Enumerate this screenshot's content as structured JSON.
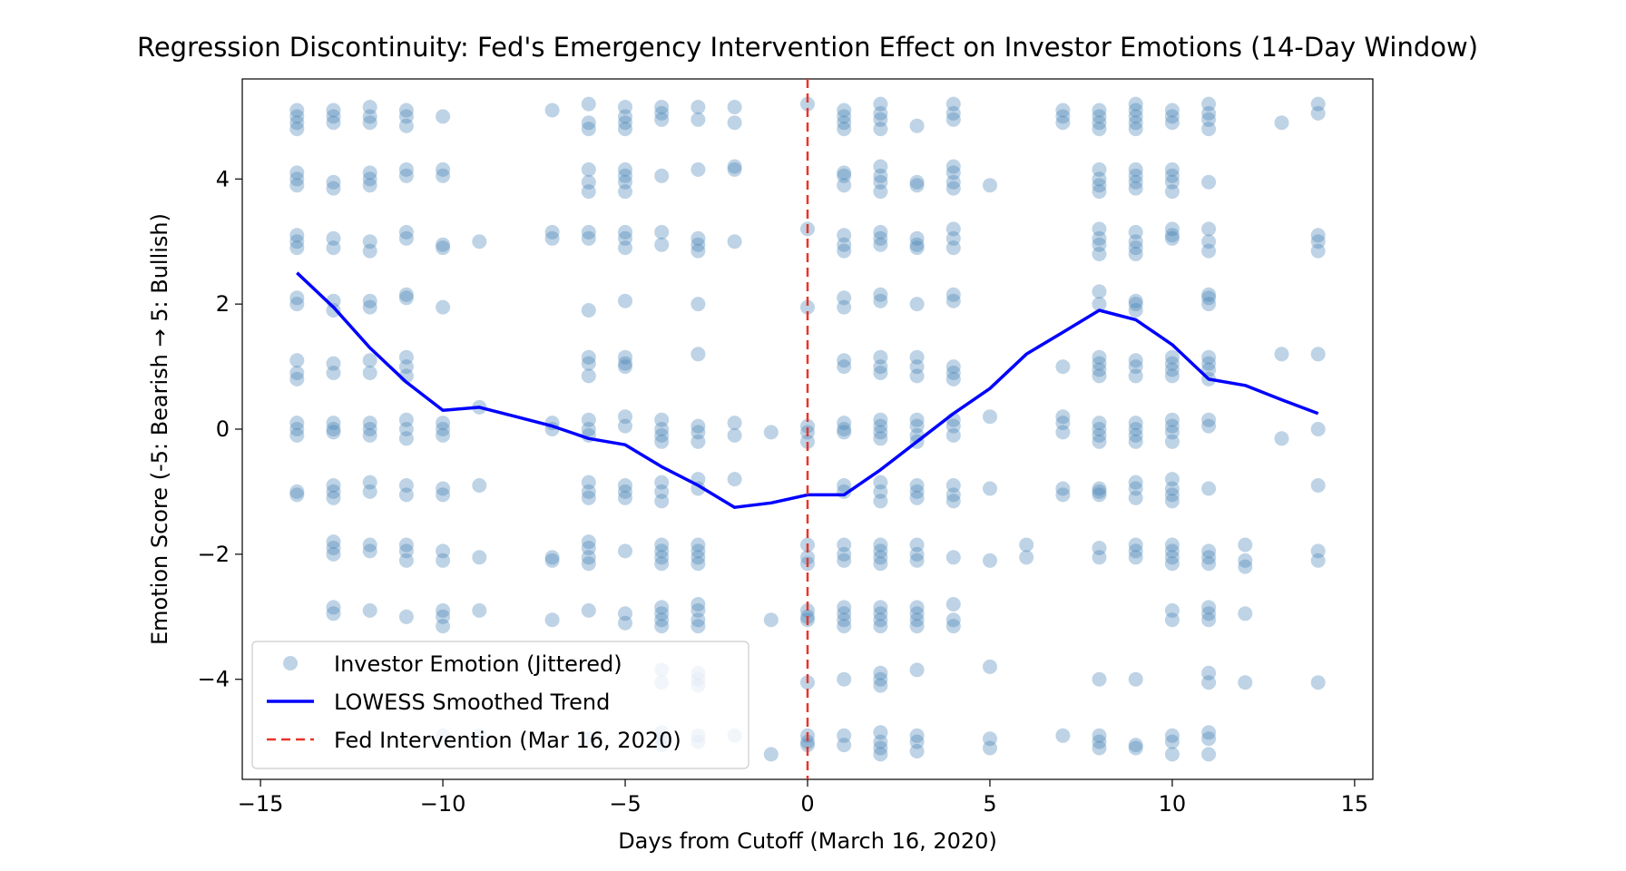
{
  "chart_data": {
    "type": "scatter",
    "title": "Regression Discontinuity: Fed's Emergency Intervention Effect on Investor Emotions (14-Day Window)",
    "xlabel": "Days from Cutoff (March 16, 2020)",
    "ylabel": "Emotion Score (-5: Bearish → 5: Bullish)",
    "xlim": [
      -15.5,
      15.5
    ],
    "ylim": [
      -5.6,
      5.6
    ],
    "x_ticks": [
      -15,
      -10,
      -5,
      0,
      5,
      10,
      15
    ],
    "x_tick_labels": [
      "−15",
      "−10",
      "−5",
      "0",
      "5",
      "10",
      "15"
    ],
    "y_ticks": [
      -4,
      -2,
      0,
      2,
      4
    ],
    "y_tick_labels": [
      "−4",
      "−2",
      "0",
      "2",
      "4"
    ],
    "grid": false,
    "legend_position": "lower-left",
    "colors": {
      "scatter": "#4682b4",
      "trend": "#0000ff",
      "cutoff": "#e8342a"
    },
    "series": [
      {
        "name": "Investor Emotion (Jittered)",
        "kind": "scatter",
        "points_by_day": [
          {
            "x": -14,
            "y": [
              5.1,
              5.0,
              4.9,
              4.8,
              4.1,
              4.0,
              3.9,
              3.1,
              3.0,
              2.9,
              2.1,
              2.0,
              1.1,
              0.9,
              0.8,
              0.1,
              0.0,
              -0.1,
              -1.0,
              -1.05
            ]
          },
          {
            "x": -13,
            "y": [
              5.1,
              5.0,
              4.9,
              3.95,
              3.85,
              3.05,
              2.9,
              2.05,
              1.9,
              1.05,
              0.9,
              0.1,
              0.0,
              -0.05,
              -0.9,
              -1.0,
              -1.1,
              -1.8,
              -1.9,
              -2.0,
              -2.85,
              -2.95
            ]
          },
          {
            "x": -12,
            "y": [
              5.15,
              5.0,
              4.9,
              4.1,
              4.0,
              3.9,
              3.0,
              2.85,
              2.05,
              1.95,
              1.1,
              0.9,
              0.1,
              0.0,
              -0.1,
              -0.85,
              -1.0,
              -1.85,
              -1.95,
              -2.9
            ]
          },
          {
            "x": -11,
            "y": [
              5.1,
              5.0,
              4.85,
              4.15,
              4.05,
              3.15,
              3.05,
              2.15,
              2.1,
              1.15,
              1.0,
              0.85,
              0.15,
              0.0,
              -0.15,
              -0.9,
              -1.05,
              -1.85,
              -1.95,
              -2.1,
              -3.0
            ]
          },
          {
            "x": -10,
            "y": [
              5.0,
              4.15,
              4.05,
              2.95,
              2.9,
              1.95,
              0.1,
              0.0,
              -0.1,
              -0.95,
              -1.05,
              -1.95,
              -2.1,
              -2.9,
              -3.0,
              -3.15,
              -4.9
            ]
          },
          {
            "x": -9,
            "y": [
              3.0,
              0.35,
              -0.9,
              -2.05,
              -2.9,
              -4.9
            ]
          },
          {
            "x": -7,
            "y": [
              5.1,
              3.15,
              3.05,
              0.1,
              0.0,
              -2.05,
              -2.1,
              -3.05
            ]
          },
          {
            "x": -6,
            "y": [
              5.2,
              4.9,
              4.8,
              4.15,
              3.95,
              3.8,
              3.15,
              3.05,
              1.9,
              1.15,
              1.05,
              0.85,
              0.15,
              0.0,
              -0.1,
              -0.85,
              -1.0,
              -1.1,
              -1.8,
              -1.9,
              -2.05,
              -2.15,
              -2.9,
              -4.95
            ]
          },
          {
            "x": -5,
            "y": [
              5.15,
              5.0,
              4.9,
              4.8,
              4.15,
              4.05,
              3.95,
              3.8,
              3.15,
              3.05,
              2.9,
              2.05,
              1.15,
              1.05,
              1.0,
              0.2,
              0.05,
              -0.9,
              -1.0,
              -1.1,
              -1.95,
              -2.95,
              -3.1
            ]
          },
          {
            "x": -4,
            "y": [
              5.15,
              5.05,
              4.95,
              4.05,
              3.15,
              2.95,
              0.15,
              0.0,
              -0.1,
              -0.2,
              -0.85,
              -1.0,
              -1.15,
              -1.85,
              -1.95,
              -2.05,
              -2.15,
              -2.85,
              -2.95,
              -3.05,
              -3.15,
              -3.85,
              -4.05,
              -4.85,
              -4.95,
              -5.05
            ]
          },
          {
            "x": -3,
            "y": [
              5.15,
              4.95,
              4.15,
              3.05,
              2.95,
              2.85,
              2.0,
              1.2,
              0.05,
              -0.05,
              -0.2,
              -0.8,
              -0.95,
              -1.85,
              -1.95,
              -2.05,
              -2.15,
              -2.8,
              -2.9,
              -3.05,
              -3.15,
              -3.9,
              -4.0,
              -4.1,
              -4.9,
              -5.0
            ]
          },
          {
            "x": -2,
            "y": [
              5.15,
              4.9,
              4.2,
              4.15,
              3.0,
              0.1,
              -0.1,
              -0.8,
              -4.9
            ]
          },
          {
            "x": -1,
            "y": [
              -0.05,
              -3.05,
              -5.2
            ]
          },
          {
            "x": 0,
            "y": [
              5.2,
              3.2,
              1.95,
              0.05,
              -0.05,
              -0.2,
              -1.85,
              -2.05,
              -2.15,
              -2.9,
              -3.0,
              -3.05,
              -4.05,
              -4.9,
              -5.0,
              -5.05
            ]
          },
          {
            "x": 1,
            "y": [
              5.1,
              5.0,
              4.9,
              4.8,
              4.1,
              4.05,
              3.9,
              3.1,
              2.95,
              2.85,
              2.1,
              1.95,
              1.1,
              1.0,
              0.1,
              0.0,
              -0.05,
              -0.9,
              -1.0,
              -1.85,
              -2.0,
              -2.1,
              -2.85,
              -2.95,
              -3.05,
              -3.15,
              -4.0,
              -4.9,
              -5.05
            ]
          },
          {
            "x": 2,
            "y": [
              5.2,
              5.05,
              4.95,
              4.8,
              4.2,
              4.05,
              3.95,
              3.8,
              3.15,
              3.05,
              2.95,
              2.15,
              2.05,
              1.15,
              1.0,
              0.9,
              0.15,
              0.05,
              -0.05,
              -0.15,
              -0.85,
              -1.0,
              -1.15,
              -1.85,
              -1.95,
              -2.05,
              -2.15,
              -2.85,
              -2.95,
              -3.05,
              -3.15,
              -3.9,
              -4.0,
              -4.1,
              -4.85,
              -5.0,
              -5.1,
              -5.2
            ]
          },
          {
            "x": 3,
            "y": [
              4.85,
              3.95,
              3.9,
              3.05,
              2.95,
              2.9,
              2.0,
              1.15,
              1.0,
              0.85,
              0.15,
              0.05,
              -0.1,
              -0.2,
              -0.9,
              -1.0,
              -1.1,
              -1.85,
              -2.0,
              -2.1,
              -2.85,
              -2.95,
              -3.05,
              -3.15,
              -3.85,
              -4.9,
              -5.0,
              -5.15
            ]
          },
          {
            "x": 4,
            "y": [
              5.2,
              5.05,
              4.95,
              4.2,
              4.1,
              3.95,
              3.85,
              3.2,
              3.05,
              2.9,
              2.15,
              2.05,
              1.0,
              0.9,
              0.8,
              0.15,
              0.05,
              -0.1,
              -0.9,
              -1.05,
              -1.15,
              -2.05,
              -2.8,
              -3.05,
              -3.15
            ]
          },
          {
            "x": 5,
            "y": [
              3.9,
              0.2,
              -0.95,
              -2.1,
              -3.8,
              -4.95,
              -5.1
            ]
          },
          {
            "x": 6,
            "y": [
              -1.85,
              -2.05
            ]
          },
          {
            "x": 7,
            "y": [
              5.1,
              5.0,
              4.9,
              1.0,
              0.2,
              0.1,
              -0.05,
              -0.95,
              -1.05,
              -4.9
            ]
          },
          {
            "x": 8,
            "y": [
              5.1,
              5.0,
              4.9,
              4.8,
              4.15,
              4.0,
              3.9,
              3.8,
              3.2,
              3.05,
              2.95,
              2.8,
              2.2,
              2.0,
              1.15,
              1.05,
              0.95,
              0.85,
              0.1,
              0.0,
              -0.1,
              -0.2,
              -0.95,
              -1.0,
              -1.05,
              -1.9,
              -2.05,
              -4.0,
              -4.9,
              -5.0,
              -5.1
            ]
          },
          {
            "x": 9,
            "y": [
              5.2,
              5.1,
              5.0,
              4.9,
              4.8,
              4.15,
              4.05,
              3.95,
              3.85,
              3.15,
              3.0,
              2.9,
              2.8,
              2.05,
              2.0,
              1.9,
              1.1,
              1.0,
              0.85,
              0.1,
              0.0,
              -0.1,
              -0.2,
              -0.85,
              -0.95,
              -1.1,
              -1.85,
              -1.95,
              -2.05,
              -4.0,
              -5.05,
              -5.1
            ]
          },
          {
            "x": 10,
            "y": [
              5.1,
              5.0,
              4.9,
              4.15,
              4.05,
              3.95,
              3.8,
              3.2,
              3.1,
              3.05,
              1.15,
              1.05,
              0.95,
              0.85,
              0.15,
              0.05,
              -0.05,
              -0.2,
              -0.8,
              -0.95,
              -1.05,
              -1.15,
              -1.85,
              -1.95,
              -2.05,
              -2.15,
              -2.9,
              -3.05,
              -4.9,
              -5.0,
              -5.2
            ]
          },
          {
            "x": 11,
            "y": [
              5.2,
              5.05,
              4.95,
              4.8,
              3.95,
              3.2,
              3.0,
              2.85,
              2.15,
              2.1,
              2.0,
              1.15,
              1.05,
              0.95,
              0.8,
              0.15,
              0.05,
              -0.95,
              -1.95,
              -2.05,
              -2.15,
              -2.85,
              -2.95,
              -3.05,
              -3.9,
              -4.05,
              -4.85,
              -4.95,
              -5.2
            ]
          },
          {
            "x": 12,
            "y": [
              -1.85,
              -2.1,
              -2.2,
              -2.95,
              -4.05
            ]
          },
          {
            "x": 13,
            "y": [
              4.9,
              1.2,
              -0.15
            ]
          },
          {
            "x": 14,
            "y": [
              5.2,
              5.05,
              3.1,
              3.0,
              2.85,
              1.2,
              0.0,
              -0.9,
              -1.95,
              -2.1,
              -4.05
            ]
          }
        ]
      },
      {
        "name": "LOWESS Smoothed Trend",
        "kind": "line",
        "x": [
          -14,
          -13,
          -12,
          -11,
          -10,
          -9,
          -8,
          -7,
          -6,
          -5,
          -4,
          -3,
          -2,
          -1,
          0,
          1,
          2,
          3,
          4,
          5,
          6,
          7,
          8,
          9,
          10,
          11,
          12,
          13,
          14
        ],
        "y": [
          2.5,
          1.95,
          1.3,
          0.75,
          0.3,
          0.35,
          0.2,
          0.05,
          -0.15,
          -0.25,
          -0.6,
          -0.9,
          -1.25,
          -1.18,
          -1.05,
          -1.05,
          -0.65,
          -0.2,
          0.25,
          0.65,
          1.2,
          1.55,
          1.9,
          1.75,
          1.35,
          0.8,
          0.7,
          0.47,
          0.25
        ]
      },
      {
        "name": "Fed Intervention (Mar 16, 2020)",
        "kind": "vline",
        "x": 0
      }
    ]
  }
}
